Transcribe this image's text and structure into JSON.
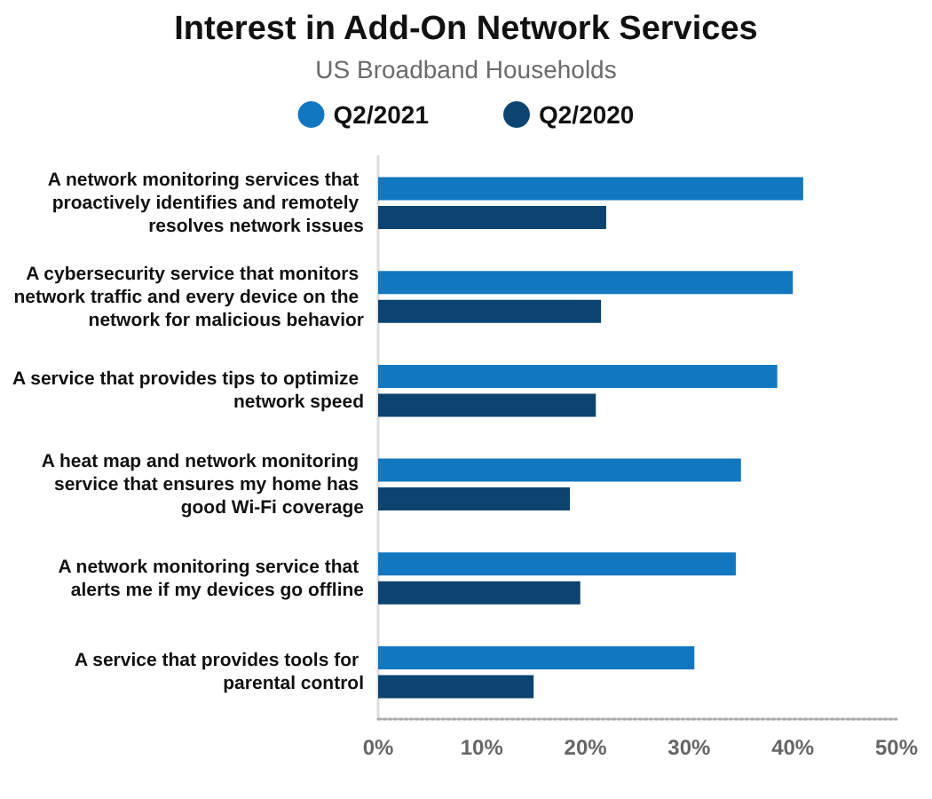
{
  "chart_data": {
    "type": "bar",
    "orientation": "horizontal",
    "title": "Interest in Add-On Network Services",
    "subtitle": "US Broadband Households",
    "categories": [
      "A network monitoring services that proactively identifies and remotely resolves network issues",
      "A cybersecurity service that monitors network traffic and every device on the network for malicious behavior",
      "A service that provides tips to optimize network speed",
      "A heat map and network monitoring service that ensures my home has good Wi-Fi coverage",
      "A network monitoring service that alerts me if my devices go offline",
      "A service that provides tools for parental control"
    ],
    "series": [
      {
        "name": "Q2/2021",
        "color": "#1177c0",
        "values": [
          41,
          40,
          38.5,
          35,
          34.5,
          30.5
        ]
      },
      {
        "name": "Q2/2020",
        "color": "#0b4471",
        "values": [
          22,
          21.5,
          21,
          18.5,
          19.5,
          15
        ]
      }
    ],
    "xlim": [
      0,
      50
    ],
    "xticks": [
      {
        "value": 0,
        "label": "0%"
      },
      {
        "value": 10,
        "label": "10%"
      },
      {
        "value": 20,
        "label": "20%"
      },
      {
        "value": 30,
        "label": "30%"
      },
      {
        "value": 40,
        "label": "40%"
      },
      {
        "value": 50,
        "label": "50%"
      }
    ],
    "grid": false,
    "legend": "top"
  }
}
